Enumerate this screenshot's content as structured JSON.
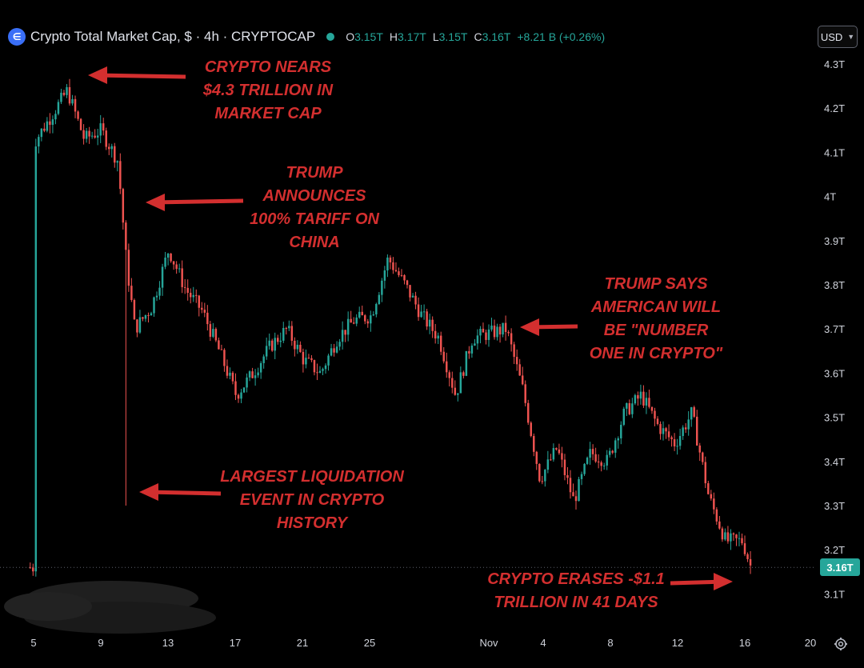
{
  "header": {
    "logo_icon": "crypto-cap-logo-icon",
    "title": "Crypto Total Market Cap, $ · 4h · CRYPTOCAP",
    "ohlc": {
      "o_key": "O",
      "o_val": "3.15T",
      "h_key": "H",
      "h_val": "3.17T",
      "l_key": "L",
      "l_val": "3.15T",
      "c_key": "C",
      "c_val": "3.16T",
      "change": "+8.21 B (+0.26%)"
    }
  },
  "currency_selector": {
    "label": "USD"
  },
  "last_price_label": "3.16T",
  "colors": {
    "up": "#26a69a",
    "down": "#ef5350",
    "annotation": "#d32f2f",
    "background": "#000000"
  },
  "annotations": [
    {
      "id": "ath",
      "lines": [
        "CRYPTO NEARS",
        "$4.3 TRILLION IN",
        "MARKET CAP"
      ],
      "arrow": "left"
    },
    {
      "id": "tariff",
      "lines": [
        "TRUMP",
        "ANNOUNCES",
        "100% TARIFF ON",
        "CHINA"
      ],
      "arrow": "left"
    },
    {
      "id": "liquidation",
      "lines": [
        "LARGEST LIQUIDATION",
        "EVENT IN CRYPTO",
        "HISTORY"
      ],
      "arrow": "left"
    },
    {
      "id": "number-one",
      "lines": [
        "TRUMP SAYS",
        "AMERICAN WILL",
        "BE \"NUMBER",
        "ONE IN CRYPTO\""
      ],
      "arrow": "left"
    },
    {
      "id": "erases",
      "lines": [
        "CRYPTO ERASES -$1.1",
        "TRILLION IN 41 DAYS"
      ],
      "arrow": "right"
    }
  ],
  "chart_data": {
    "type": "candlestick",
    "series": [
      {
        "name": "",
        "timeframe": "4h"
      }
    ],
    "x_ticks": [
      "5",
      "9",
      "13",
      "17",
      "21",
      "25",
      "Nov",
      "4",
      "8",
      "12",
      "16",
      "20"
    ],
    "y_ticks": [
      "4.3T",
      "4.2T",
      "4.1T",
      "4T",
      "3.9T",
      "3.8T",
      "3.7T",
      "3.6T",
      "3.5T",
      "3.4T",
      "3.3T",
      "3.2T",
      "3.1T"
    ],
    "ylim": [
      3.05,
      4.35
    ],
    "last_price": 3.16,
    "grid": false,
    "legend": "none",
    "closes_by_day": [
      [
        5,
        4.12
      ],
      [
        6,
        4.18
      ],
      [
        7,
        4.24
      ],
      [
        8,
        4.13
      ],
      [
        9,
        4.15
      ],
      [
        10,
        4.08
      ],
      [
        10.5,
        3.85
      ],
      [
        11,
        3.7
      ],
      [
        12,
        3.75
      ],
      [
        13,
        3.88
      ],
      [
        14,
        3.79
      ],
      [
        15,
        3.74
      ],
      [
        16,
        3.65
      ],
      [
        17,
        3.55
      ],
      [
        18,
        3.6
      ],
      [
        19,
        3.66
      ],
      [
        20,
        3.7
      ],
      [
        21,
        3.63
      ],
      [
        22,
        3.6
      ],
      [
        23,
        3.68
      ],
      [
        24,
        3.72
      ],
      [
        25,
        3.73
      ],
      [
        26,
        3.86
      ],
      [
        27,
        3.8
      ],
      [
        28,
        3.73
      ],
      [
        29,
        3.68
      ],
      [
        30,
        3.55
      ],
      [
        31,
        3.68
      ],
      [
        32,
        3.69
      ],
      [
        33,
        3.7
      ],
      [
        34,
        3.56
      ],
      [
        35,
        3.36
      ],
      [
        36,
        3.43
      ],
      [
        37,
        3.31
      ],
      [
        38,
        3.42
      ],
      [
        39,
        3.4
      ],
      [
        40,
        3.51
      ],
      [
        41,
        3.55
      ],
      [
        42,
        3.48
      ],
      [
        43,
        3.44
      ],
      [
        44,
        3.51
      ],
      [
        45,
        3.32
      ],
      [
        46,
        3.22
      ],
      [
        47,
        3.22
      ],
      [
        47.5,
        3.16
      ]
    ],
    "wicks": {
      "liquidation_low": 3.3,
      "liquidation_day": 10.5
    }
  }
}
